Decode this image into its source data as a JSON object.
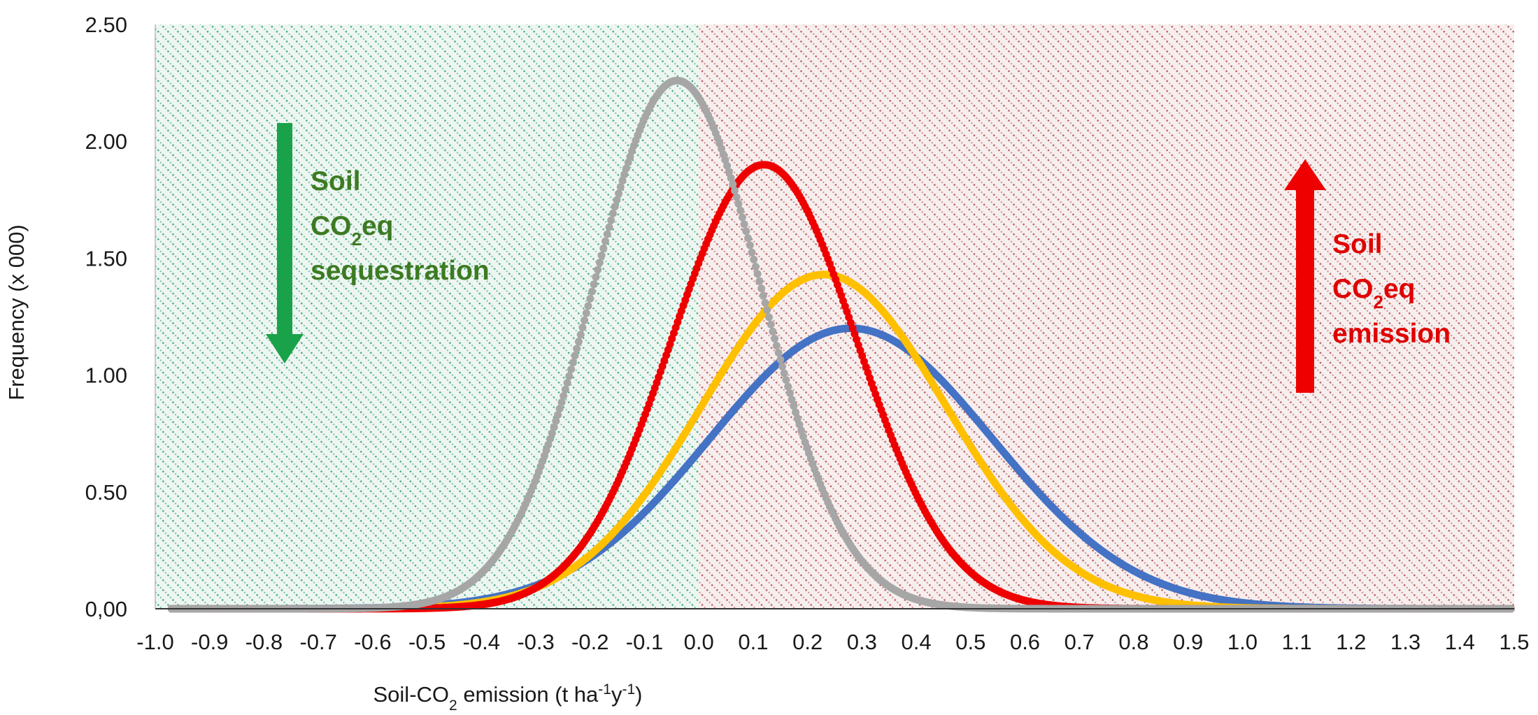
{
  "chart_data": {
    "type": "scatter",
    "title": "",
    "xlabel": {
      "base": "Soil-CO",
      "sub": "2",
      "mid": " emission (t ha",
      "sup1": "-1",
      "mid2": "y",
      "sup2": "-1",
      "end": ")"
    },
    "ylabel": "Frequency (x 000)",
    "xlim": [
      -1.0,
      1.5
    ],
    "ylim": [
      0,
      2.5
    ],
    "x_ticks": [
      "-1.0",
      "-0.9",
      "-0.8",
      "-0.7",
      "-0.6",
      "-0.5",
      "-0.4",
      "-0.3",
      "-0.2",
      "-0.1",
      "0.0",
      "0.1",
      "0.2",
      "0.3",
      "0.4",
      "0.5",
      "0.6",
      "0.7",
      "0.8",
      "0.9",
      "1.0",
      "1.1",
      "1.2",
      "1.3",
      "1.4",
      "1.5"
    ],
    "y_ticks": [
      "0,00",
      "0.50",
      "1.00",
      "1.50",
      "2.00",
      "2.50"
    ],
    "regions": [
      {
        "name": "sequestration",
        "x_range": [
          -1.0,
          0.0
        ],
        "color": "#1f9a6b"
      },
      {
        "name": "emission",
        "x_range": [
          0.0,
          1.5
        ],
        "color": "#a83232"
      }
    ],
    "series": [
      {
        "name": "grey",
        "color": "#a6a6a6",
        "mean": -0.04,
        "sd": 0.155,
        "peak": 2.26
      },
      {
        "name": "red",
        "color": "#ee0000",
        "mean": 0.12,
        "sd": 0.17,
        "peak": 1.9
      },
      {
        "name": "yellow",
        "color": "#ffc000",
        "mean": 0.23,
        "sd": 0.225,
        "peak": 1.43
      },
      {
        "name": "blue",
        "color": "#4472c4",
        "mean": 0.28,
        "sd": 0.26,
        "peak": 1.2
      }
    ],
    "annotations": {
      "sequestration": {
        "line1": "Soil",
        "line2_main": "CO",
        "line2_sub": "2",
        "line2_end": "eq",
        "line3": "sequestration",
        "color": "#3d7a22",
        "arrow_color": "#1aa24a"
      },
      "emission": {
        "line1": "Soil",
        "line2_main": "CO",
        "line2_sub": "2",
        "line2_end": "eq",
        "line3": "emission",
        "color": "#e00000",
        "arrow_color": "#ee0000"
      }
    }
  }
}
